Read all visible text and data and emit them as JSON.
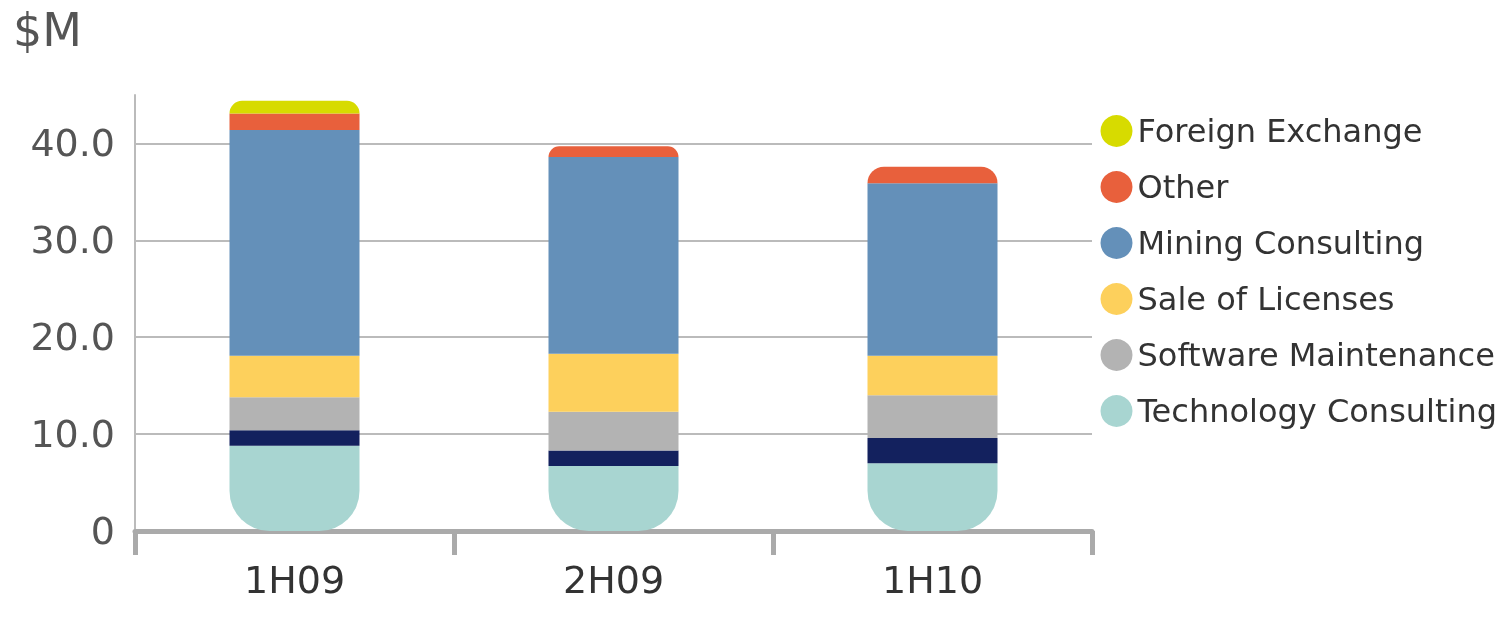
{
  "chart_data": {
    "type": "bar",
    "stacked": true,
    "ylabel": "$M",
    "categories": [
      "1H09",
      "2H09",
      "1H10"
    ],
    "series": [
      {
        "name": "Technology Consulting",
        "color": "#a8d5d1",
        "values": [
          8.8,
          6.7,
          7.0
        ]
      },
      {
        "color": "#13215e",
        "values": [
          1.6,
          1.6,
          2.6
        ]
      },
      {
        "name": "Software Maintenance",
        "color": "#b3b3b3",
        "values": [
          3.4,
          4.0,
          4.4
        ]
      },
      {
        "name": "Sale of Licenses",
        "color": "#fdd05c",
        "values": [
          4.3,
          6.0,
          4.1
        ]
      },
      {
        "name": "Mining Consulting",
        "color": "#6490b9",
        "values": [
          23.3,
          20.3,
          17.8
        ]
      },
      {
        "name": "Other",
        "color": "#e8603c",
        "values": [
          1.7,
          1.1,
          1.7
        ]
      },
      {
        "name": "Foreign Exchange",
        "color": "#d7db00",
        "values": [
          1.3,
          null,
          null
        ]
      }
    ],
    "ylim": [
      0,
      45
    ],
    "yticks": [
      0,
      {
        "value": 10,
        "label": "10.0"
      },
      {
        "value": 20,
        "label": "20.0"
      },
      {
        "value": 30,
        "label": "30.0"
      },
      {
        "value": 40,
        "label": "40.0"
      }
    ],
    "grid": "y",
    "legend": "right",
    "marker": "circle"
  }
}
